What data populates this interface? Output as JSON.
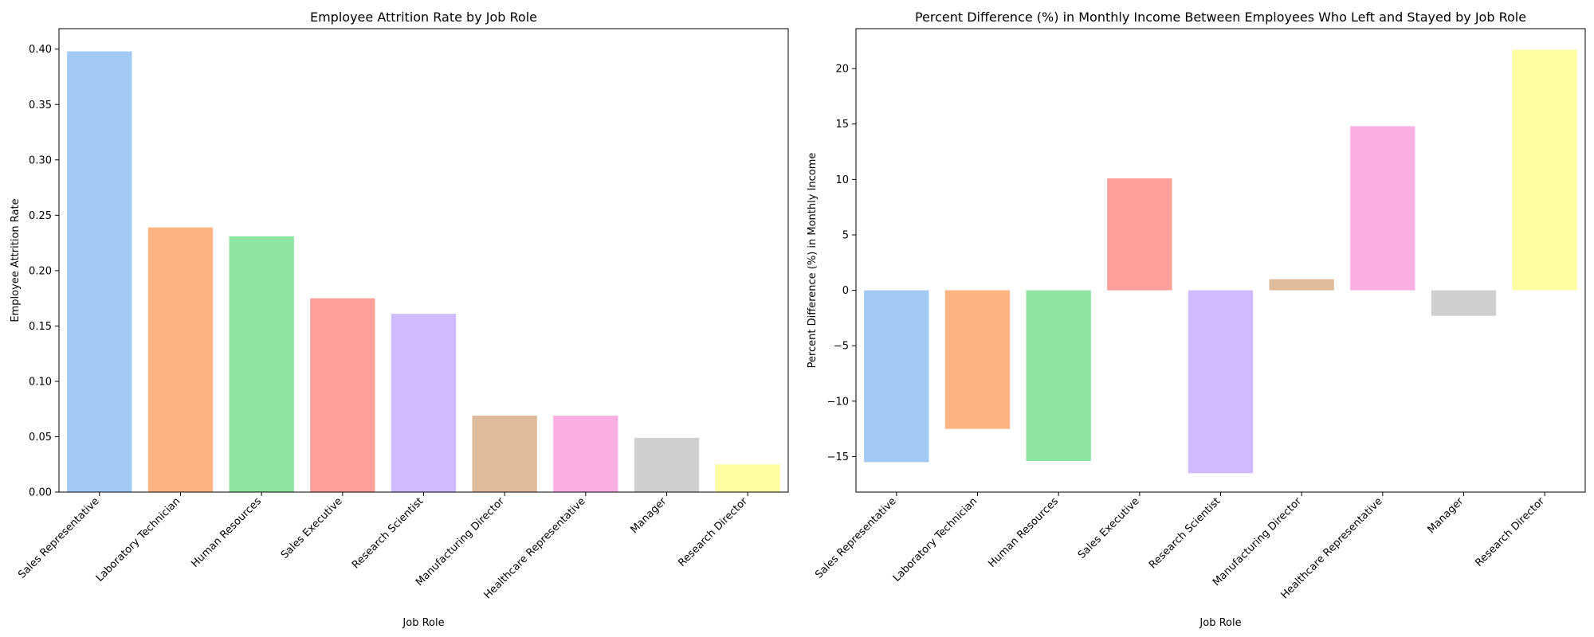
{
  "chart_data": [
    {
      "type": "bar",
      "title": "Employee Attrition Rate by Job Role",
      "xlabel": "Job Role",
      "ylabel": "Employee Attrition Rate",
      "categories": [
        "Sales Representative",
        "Laboratory Technician",
        "Human Resources",
        "Sales Executive",
        "Research Scientist",
        "Manufacturing Director",
        "Healthcare Representative",
        "Manager",
        "Research Director"
      ],
      "values": [
        0.398,
        0.239,
        0.231,
        0.175,
        0.161,
        0.069,
        0.069,
        0.049,
        0.025
      ],
      "ylim": [
        0,
        0.4185
      ],
      "yticks": [
        0.0,
        0.05,
        0.1,
        0.15,
        0.2,
        0.25,
        0.3,
        0.35,
        0.4
      ],
      "ytick_labels": [
        "0.00",
        "0.05",
        "0.10",
        "0.15",
        "0.20",
        "0.25",
        "0.30",
        "0.35",
        "0.40"
      ],
      "colors": [
        "#a1c9f4",
        "#ffb482",
        "#8de5a1",
        "#ff9f9b",
        "#d0bbff",
        "#debb9b",
        "#fab0e4",
        "#cfcfcf",
        "#fffea3"
      ],
      "grid": false
    },
    {
      "type": "bar",
      "title": "Percent Difference (%) in Monthly Income Between Employees Who Left and Stayed by Job Role",
      "xlabel": "Job Role",
      "ylabel": "Percent Difference (%) in Monthly Income",
      "categories": [
        "Sales Representative",
        "Laboratory Technician",
        "Human Resources",
        "Sales Executive",
        "Research Scientist",
        "Manufacturing Director",
        "Healthcare Representative",
        "Manager",
        "Research Director"
      ],
      "values": [
        -15.5,
        -12.5,
        -15.4,
        10.1,
        -16.5,
        1.0,
        14.8,
        -2.3,
        21.7
      ],
      "ylim": [
        -18.2,
        23.6
      ],
      "yticks": [
        -15,
        -10,
        -5,
        0,
        5,
        10,
        15,
        20
      ],
      "ytick_labels": [
        "−15",
        "−10",
        "−5",
        "0",
        "5",
        "10",
        "15",
        "20"
      ],
      "colors": [
        "#a1c9f4",
        "#ffb482",
        "#8de5a1",
        "#ff9f9b",
        "#d0bbff",
        "#debb9b",
        "#fab0e4",
        "#cfcfcf",
        "#fffea3"
      ],
      "grid": false
    }
  ]
}
